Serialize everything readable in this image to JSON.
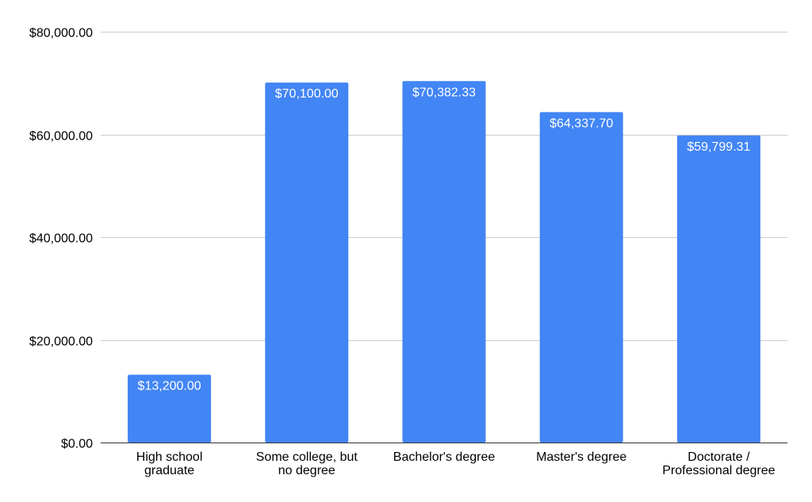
{
  "chart_data": {
    "type": "bar",
    "title": "",
    "xlabel": "",
    "ylabel": "",
    "categories": [
      [
        "High school",
        "graduate"
      ],
      [
        "Some college, but",
        "no degree"
      ],
      [
        "Bachelor's degree"
      ],
      [
        "Master's degree"
      ],
      [
        "Doctorate /",
        "Professional degree"
      ]
    ],
    "values": [
      13200.0,
      70100.0,
      70382.33,
      64337.7,
      59799.31
    ],
    "data_labels": [
      "$13,200.00",
      "$70,100.00",
      "$70,382.33",
      "$64,337.70",
      "$59,799.31"
    ],
    "ylim": [
      0,
      80000
    ],
    "y_ticks": [
      0,
      20000,
      40000,
      60000,
      80000
    ],
    "y_tick_labels": [
      "$0.00",
      "$20,000.00",
      "$40,000.00",
      "$60,000.00",
      "$80,000.00"
    ],
    "grid": true,
    "legend": "none",
    "colors": {
      "bar": "#4285f4",
      "grid": "#cccccc",
      "axis": "#333333",
      "text": "#000000",
      "data_label": "#ffffff"
    }
  }
}
